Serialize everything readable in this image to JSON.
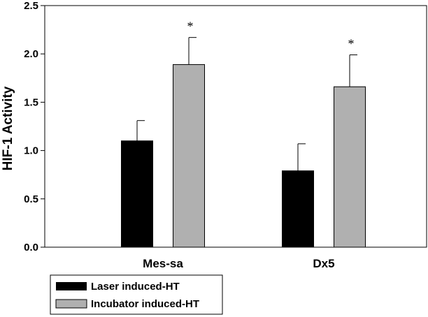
{
  "chart_data": {
    "type": "bar",
    "title": "",
    "xlabel": "",
    "ylabel": "HIF-1 Activity",
    "ylim": [
      0.0,
      2.5
    ],
    "yticks": [
      "0.0",
      "0.5",
      "1.0",
      "1.5",
      "2.0",
      "2.5"
    ],
    "grid": false,
    "categories": [
      "Mes-sa",
      "Dx5"
    ],
    "series": [
      {
        "name": "Laser induced-HT",
        "color": "#000000",
        "values": [
          1.1,
          0.79
        ],
        "errors": [
          0.21,
          0.28
        ],
        "annotations": [
          "",
          ""
        ]
      },
      {
        "name": "Incubator induced-HT",
        "color": "#b0b0b0",
        "values": [
          1.89,
          1.66
        ],
        "errors": [
          0.28,
          0.33
        ],
        "annotations": [
          "*",
          "*"
        ]
      }
    ],
    "legend": {
      "position": "bottom-left",
      "entries": [
        "Laser induced-HT",
        "Incubator induced-HT"
      ]
    }
  }
}
